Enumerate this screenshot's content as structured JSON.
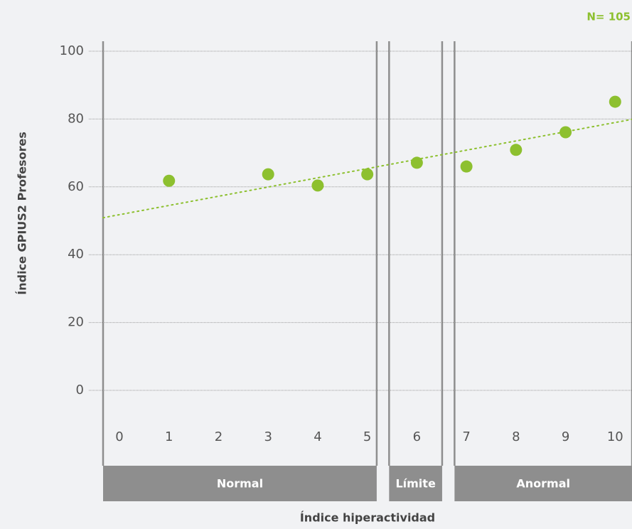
{
  "chart_data": {
    "type": "scatter",
    "annotation": "N= 105",
    "x_label": "Índice hiperactividad",
    "y_label": "Índice GPIUS2 Profesores",
    "x": [
      1,
      3,
      4,
      5,
      6,
      7,
      8,
      9,
      10
    ],
    "values": [
      61.8,
      63.7,
      60.4,
      63.7,
      67.1,
      66.0,
      70.9,
      76.1,
      85.1
    ],
    "color": "#8dc02f",
    "trendline": {
      "x": [
        -0.33,
        10.34
      ],
      "y": [
        50.9,
        79.9
      ]
    },
    "xlim": [
      -0.33,
      10.34
    ],
    "xticks": [
      0,
      1,
      2,
      3,
      4,
      5,
      6,
      7,
      8,
      9,
      10
    ],
    "ylim": [
      0,
      100
    ],
    "yticks": [
      0,
      20,
      40,
      60,
      80,
      100
    ],
    "grid": true,
    "groups": [
      {
        "label": "Normal",
        "range": [
          -0.33,
          5.19
        ]
      },
      {
        "label": "Límite",
        "range": [
          5.44,
          6.51
        ]
      },
      {
        "label": "Anormal",
        "range": [
          6.76,
          10.34
        ]
      }
    ],
    "group_color": "#8e8e8e"
  }
}
